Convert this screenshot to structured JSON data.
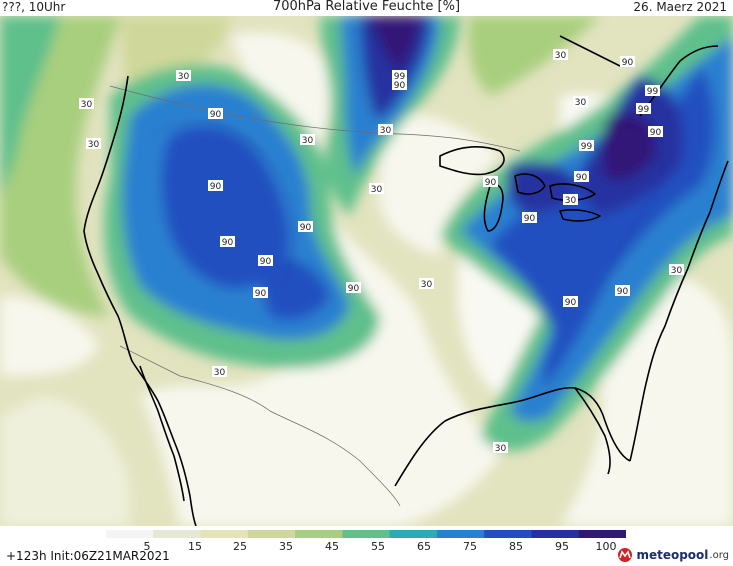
{
  "header": {
    "left": "???, 10Uhr",
    "title": "700hPa Relative Feuchte [%]",
    "date": "26. Maerz 2021"
  },
  "colorbar": {
    "ticks": [
      "5",
      "15",
      "25",
      "35",
      "45",
      "55",
      "65",
      "75",
      "85",
      "95",
      "100"
    ],
    "colors": [
      "#f4f4f4",
      "#e6e8d6",
      "#e4e4b8",
      "#cfd89a",
      "#a8cf7e",
      "#5fc08c",
      "#2fa8b8",
      "#2a80d0",
      "#2050c0",
      "#2830a0",
      "#301878"
    ]
  },
  "footer": {
    "forecast": "+123h Init:06Z21MAR2021"
  },
  "logo": {
    "brand": "meteopool",
    "tld": ".org"
  },
  "contour_labels": [
    {
      "text": "30"
    },
    {
      "text": "30"
    },
    {
      "text": "30"
    },
    {
      "text": "90"
    },
    {
      "text": "90"
    },
    {
      "text": "90"
    },
    {
      "text": "90"
    },
    {
      "text": "90"
    },
    {
      "text": "90"
    },
    {
      "text": "90"
    },
    {
      "text": "99"
    },
    {
      "text": "90"
    },
    {
      "text": "30"
    },
    {
      "text": "30"
    },
    {
      "text": "30"
    },
    {
      "text": "90"
    },
    {
      "text": "99"
    },
    {
      "text": "99"
    },
    {
      "text": "90"
    },
    {
      "text": "99"
    },
    {
      "text": "90"
    },
    {
      "text": "90"
    },
    {
      "text": "90"
    },
    {
      "text": "30"
    },
    {
      "text": "30"
    },
    {
      "text": "90"
    },
    {
      "text": "90"
    },
    {
      "text": "30"
    },
    {
      "text": "30"
    },
    {
      "text": "30"
    },
    {
      "text": "30"
    },
    {
      "text": "30"
    }
  ]
}
